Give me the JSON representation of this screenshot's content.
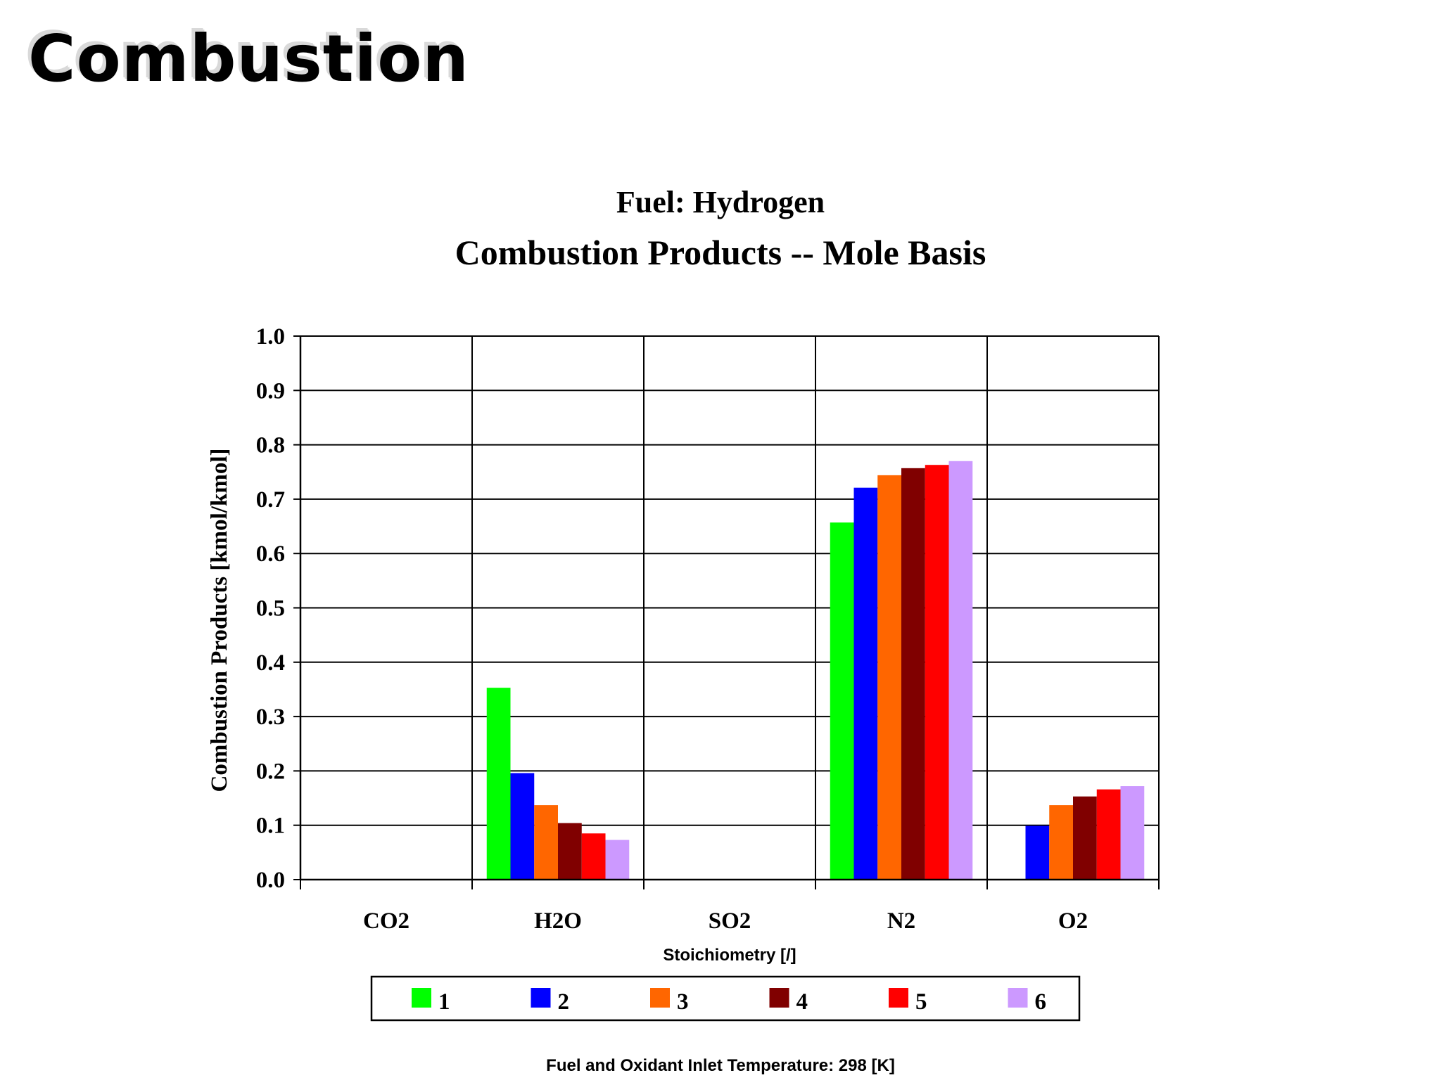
{
  "slide": {
    "title": "Combustion",
    "footnote": "Fuel and Oxidant Inlet Temperature:  298 [K]"
  },
  "chart_data": {
    "type": "bar",
    "subtitle": "Fuel:  Hydrogen",
    "title": "Combustion Products -- Mole Basis",
    "xlabel": "Stoichiometry [/]",
    "ylabel": "Combustion Products [kmol/kmol]",
    "ylim": [
      0,
      1.0
    ],
    "yticks": [
      "0.0",
      "0.1",
      "0.2",
      "0.3",
      "0.4",
      "0.5",
      "0.6",
      "0.7",
      "0.8",
      "0.9",
      "1.0"
    ],
    "grid": true,
    "legend_position": "bottom",
    "categories": [
      "CO2",
      "H2O",
      "SO2",
      "N2",
      "O2"
    ],
    "series": [
      {
        "name": "1",
        "color": "#00ff00",
        "values": [
          0,
          0.353,
          0,
          0.657,
          0
        ]
      },
      {
        "name": "2",
        "color": "#0000ff",
        "values": [
          0,
          0.196,
          0,
          0.721,
          0.099
        ]
      },
      {
        "name": "3",
        "color": "#ff6600",
        "values": [
          0,
          0.137,
          0,
          0.744,
          0.137
        ]
      },
      {
        "name": "4",
        "color": "#800000",
        "values": [
          0,
          0.104,
          0,
          0.757,
          0.153
        ]
      },
      {
        "name": "5",
        "color": "#ff0000",
        "values": [
          0,
          0.085,
          0,
          0.763,
          0.166
        ]
      },
      {
        "name": "6",
        "color": "#cc99ff",
        "values": [
          0,
          0.073,
          0,
          0.77,
          0.172
        ]
      }
    ]
  }
}
